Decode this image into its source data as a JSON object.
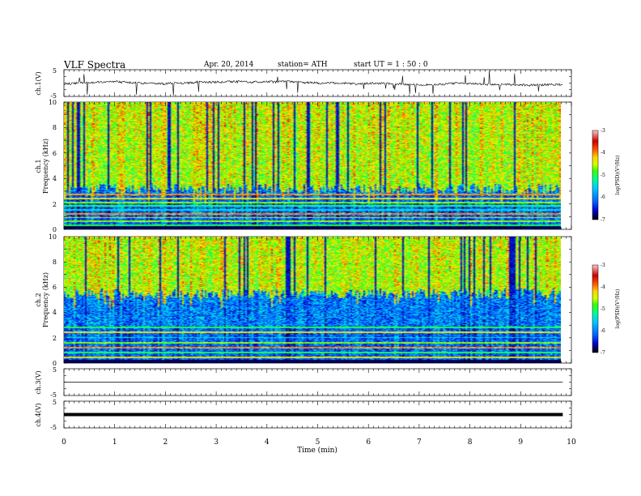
{
  "header": {
    "title": "VLF  Spectra",
    "date": "Apr. 20, 2014",
    "station": "station= ATH",
    "start": "start  UT  =   1 : 50 : 0"
  },
  "chart_data": [
    {
      "type": "line",
      "panel": "ch1-waveform",
      "ylabel": "ch.1(V)",
      "ylim": [
        -5,
        5
      ],
      "yticks": [
        "5",
        "-5"
      ],
      "note": "noisy waveform centered near -0.3 V with frequent spikes"
    },
    {
      "type": "heatmap",
      "panel": "ch1-spectrogram",
      "ylabel_channel": "ch.1",
      "ylabel": "Frequency  (kHz)",
      "ylim": [
        0,
        10
      ],
      "yticks": [
        "0",
        "2",
        "4",
        "6",
        "8",
        "10"
      ],
      "colorbar": {
        "label": "log(PSD)(V²/Hz)",
        "range": [
          -7,
          -3
        ],
        "ticks": [
          "-3",
          "-4",
          "-5",
          "-6",
          "-7"
        ]
      },
      "hiss_band_khz": [
        3.2,
        10
      ],
      "narrowband_lines_khz": [
        0.3,
        0.6,
        0.9,
        1.2,
        1.5,
        1.8,
        2.1,
        2.4,
        2.7
      ]
    },
    {
      "type": "heatmap",
      "panel": "ch2-spectrogram",
      "ylabel_channel": "ch.2",
      "ylabel": "Frequency  (kHz)",
      "ylim": [
        0,
        10
      ],
      "yticks": [
        "0",
        "2",
        "4",
        "6",
        "8",
        "10"
      ],
      "colorbar": {
        "label": "log(PSD)(V²/Hz)",
        "range": [
          -7,
          -3
        ],
        "ticks": [
          "-3",
          "-4",
          "-5",
          "-6",
          "-7"
        ]
      },
      "hiss_band_khz": [
        5.5,
        10
      ],
      "narrowband_lines_khz": [
        0.4,
        0.8,
        1.2,
        1.6,
        2.0,
        2.4,
        2.8
      ]
    },
    {
      "type": "line",
      "panel": "ch3-waveform",
      "ylabel": "ch.3(V)",
      "ylim": [
        -5,
        5
      ],
      "yticks": [
        "5",
        "-5"
      ],
      "level": 0
    },
    {
      "type": "line",
      "panel": "ch4-waveform",
      "ylabel": "ch.4(V)",
      "ylim": [
        -5,
        5
      ],
      "yticks": [
        "5",
        "-5"
      ],
      "level": 0
    }
  ],
  "xaxis": {
    "label": "Time  (min)",
    "range": [
      0,
      10
    ],
    "data_end": 9.83,
    "ticks": [
      "0",
      "1",
      "2",
      "3",
      "4",
      "5",
      "6",
      "7",
      "8",
      "9",
      "10"
    ]
  },
  "colors": {
    "colormap": [
      "#000000",
      "#0000c8",
      "#0060ff",
      "#00c8ff",
      "#00ff96",
      "#3cff00",
      "#d2ff00",
      "#ffd200",
      "#ff5a00",
      "#c80000",
      "#ffc8c8"
    ],
    "axes": "#000000"
  }
}
